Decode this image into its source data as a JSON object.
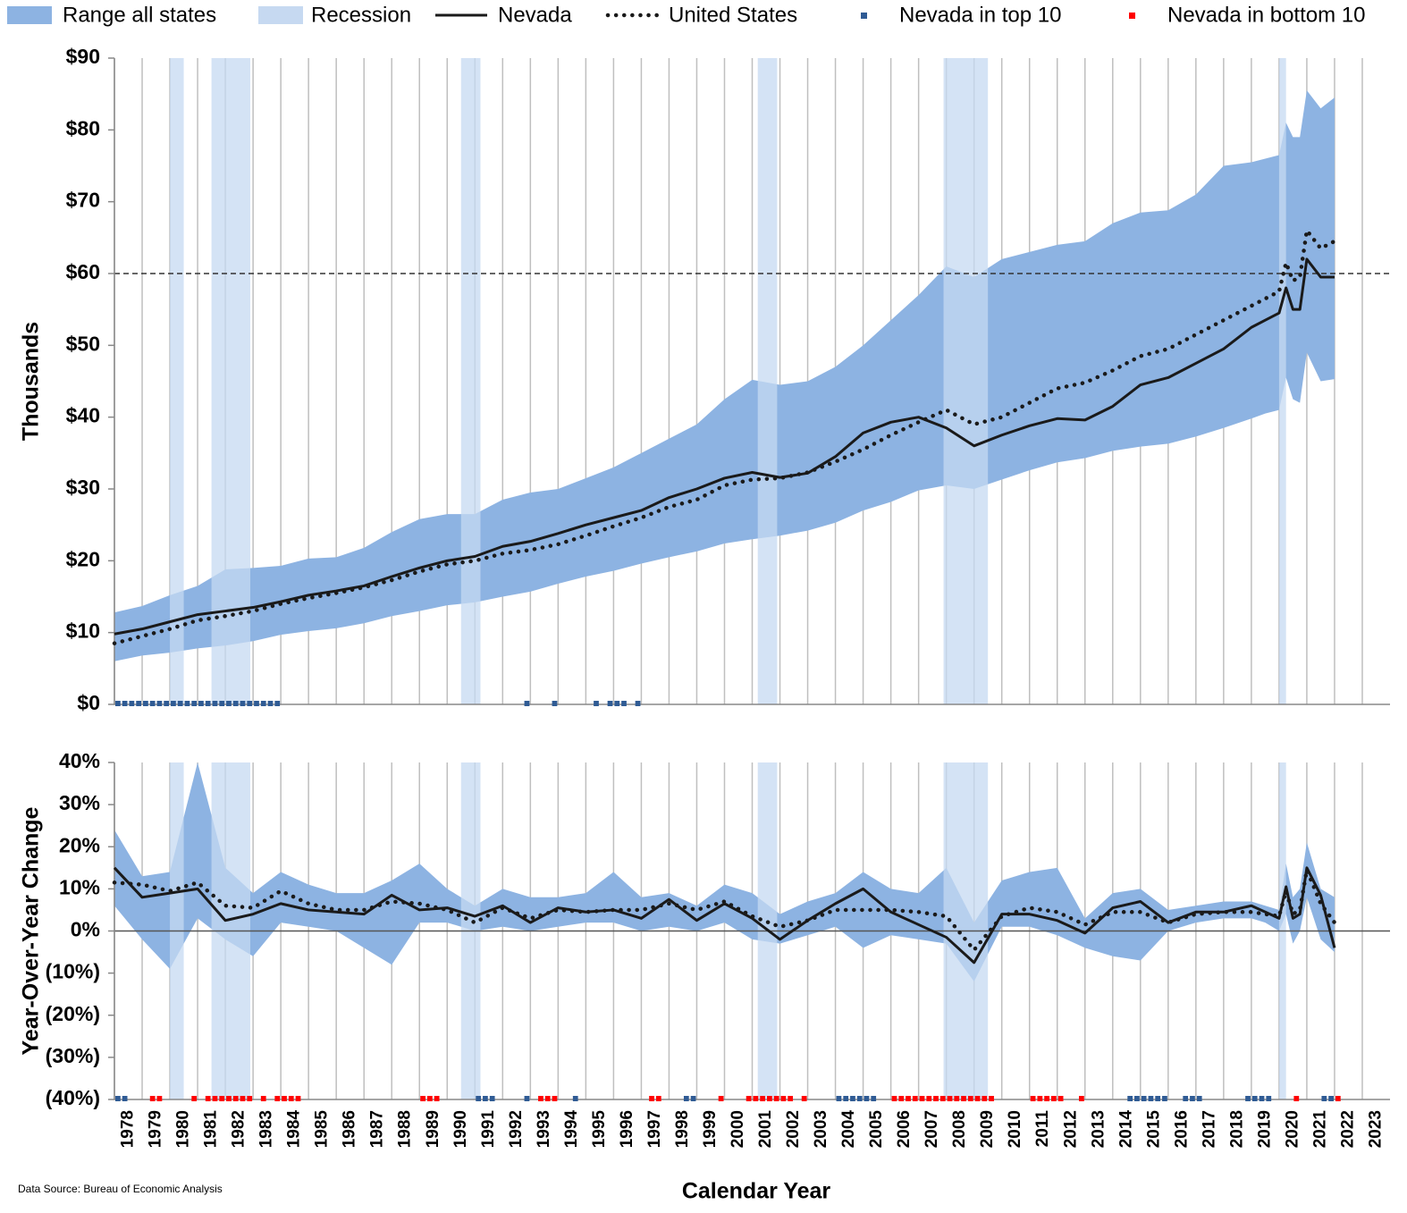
{
  "chart_data": [
    {
      "type": "line",
      "ylabel": "Thousands",
      "x": [
        1978,
        1979,
        1980,
        1981,
        1982,
        1983,
        1984,
        1985,
        1986,
        1987,
        1988,
        1989,
        1990,
        1991,
        1992,
        1993,
        1994,
        1995,
        1996,
        1997,
        1998,
        1999,
        2000,
        2001,
        2002,
        2003,
        2004,
        2005,
        2006,
        2007,
        2008,
        2009,
        2010,
        2011,
        2012,
        2013,
        2014,
        2015,
        2016,
        2017,
        2018,
        2019,
        2019.5,
        2020,
        2020.25,
        2020.5,
        2020.75,
        2021,
        2021.5,
        2022
      ],
      "xlim": [
        1978,
        2024
      ],
      "xticks": [
        1978,
        1979,
        1980,
        1981,
        1982,
        1983,
        1984,
        1985,
        1986,
        1987,
        1988,
        1989,
        1990,
        1991,
        1992,
        1993,
        1994,
        1995,
        1996,
        1997,
        1998,
        1999,
        2000,
        2001,
        2002,
        2003,
        2004,
        2005,
        2006,
        2007,
        2008,
        2009,
        2010,
        2011,
        2012,
        2013,
        2014,
        2015,
        2016,
        2017,
        2018,
        2019,
        2020,
        2021,
        2022,
        2023
      ],
      "show_xtick_labels": false,
      "ylim": [
        0,
        90
      ],
      "yticks": [
        {
          "value": 0,
          "label": "$0"
        },
        {
          "value": 10,
          "label": "$10"
        },
        {
          "value": 20,
          "label": "$20"
        },
        {
          "value": 30,
          "label": "$30"
        },
        {
          "value": 40,
          "label": "$40"
        },
        {
          "value": 50,
          "label": "$50"
        },
        {
          "value": 60,
          "label": "$60"
        },
        {
          "value": 70,
          "label": "$70"
        },
        {
          "value": 80,
          "label": "$80"
        },
        {
          "value": 90,
          "label": "$90"
        }
      ],
      "grid": true,
      "reference_line": {
        "value": 60,
        "style": "dashed"
      },
      "recession": {
        "name": "Recession",
        "color": "#c6d9f1",
        "periods": [
          [
            1980.0,
            1980.5
          ],
          [
            1981.5,
            1982.9
          ],
          [
            1990.5,
            1991.2
          ],
          [
            2001.2,
            2001.9
          ],
          [
            2007.9,
            2009.5
          ],
          [
            2020.0,
            2020.25
          ]
        ]
      },
      "range": {
        "name": "Range all states",
        "color": "#8db3e2",
        "low": [
          6,
          6.8,
          7.2,
          7.8,
          8.2,
          8.8,
          9.7,
          10.2,
          10.6,
          11.3,
          12.3,
          13.0,
          13.8,
          14.2,
          15.0,
          15.7,
          16.8,
          17.8,
          18.6,
          19.6,
          20.5,
          21.3,
          22.4,
          23.0,
          23.5,
          24.2,
          25.3,
          27.0,
          28.2,
          29.8,
          30.5,
          30.0,
          31.3,
          32.6,
          33.7,
          34.3,
          35.3,
          35.9,
          36.3,
          37.3,
          38.5,
          39.8,
          40.5,
          41,
          45.5,
          42.5,
          42,
          49,
          45,
          45.3
        ],
        "high": [
          12.8,
          13.7,
          15.2,
          16.5,
          18.8,
          19.0,
          19.3,
          20.3,
          20.5,
          21.8,
          24.0,
          25.8,
          26.5,
          26.5,
          28.5,
          29.5,
          30.0,
          31.5,
          33.0,
          35.0,
          37.0,
          39.0,
          42.5,
          45.2,
          44.5,
          45.0,
          47.0,
          50.0,
          53.5,
          57.0,
          61.0,
          59.5,
          62.0,
          63.0,
          64.0,
          64.5,
          67.0,
          68.5,
          68.8,
          71.0,
          75.0,
          75.5,
          76.0,
          76.5,
          81.0,
          79.0,
          79.0,
          85.5,
          83.0,
          84.5
        ]
      },
      "series": [
        {
          "name": "Nevada",
          "color": "#1a1a1a",
          "style": "solid",
          "values": [
            9.8,
            10.5,
            11.5,
            12.5,
            13.0,
            13.5,
            14.3,
            15.2,
            15.8,
            16.5,
            17.8,
            19.0,
            20.0,
            20.6,
            22.0,
            22.7,
            23.8,
            25.0,
            26.0,
            27.0,
            28.8,
            30.0,
            31.5,
            32.3,
            31.6,
            32.2,
            34.5,
            37.8,
            39.3,
            40.0,
            38.5,
            36.0,
            37.5,
            38.8,
            39.8,
            39.6,
            41.5,
            44.5,
            45.5,
            47.5,
            49.5,
            52.5,
            53.5,
            54.5,
            58.0,
            55.0,
            55.0,
            62.0,
            59.5,
            59.5
          ]
        },
        {
          "name": "United States",
          "color": "#1a1a1a",
          "style": "dotted",
          "values": [
            8.5,
            9.5,
            10.5,
            11.7,
            12.3,
            13.0,
            14.0,
            14.8,
            15.5,
            16.3,
            17.3,
            18.5,
            19.5,
            20.0,
            21.0,
            21.5,
            22.3,
            23.5,
            24.8,
            26.0,
            27.5,
            28.5,
            30.5,
            31.3,
            31.5,
            32.3,
            33.8,
            35.5,
            37.5,
            39.3,
            41.0,
            39.0,
            40.0,
            42.0,
            44.0,
            44.8,
            46.5,
            48.5,
            49.5,
            51.5,
            53.5,
            55.5,
            56.5,
            57.5,
            61.5,
            59.0,
            59.5,
            66.0,
            63.5,
            64.5
          ]
        }
      ],
      "markers": [
        {
          "name": "Nevada in top 10",
          "color": "#2f5b94",
          "x": [
            1978,
            1978.25,
            1978.5,
            1978.75,
            1979,
            1979.25,
            1979.5,
            1979.75,
            1980,
            1980.25,
            1980.5,
            1980.75,
            1981,
            1981.25,
            1981.5,
            1981.75,
            1982,
            1982.25,
            1982.5,
            1982.75,
            1983,
            1983.25,
            1983.5,
            1983.75,
            1992.75,
            1993.75,
            1995.25,
            1995.75,
            1996,
            1996.25,
            1996.75
          ]
        },
        {
          "name": "Nevada in bottom 10",
          "color": "#ff0000",
          "x": []
        }
      ]
    },
    {
      "type": "line",
      "ylabel": "Year-Over-Year Change",
      "xlabel": "Calendar Year",
      "note": "Data Source: Bureau of Economic Analysis",
      "x": [
        1978,
        1979,
        1980,
        1981,
        1982,
        1983,
        1984,
        1985,
        1986,
        1987,
        1988,
        1989,
        1990,
        1991,
        1992,
        1993,
        1994,
        1995,
        1996,
        1997,
        1998,
        1999,
        2000,
        2001,
        2002,
        2003,
        2004,
        2005,
        2006,
        2007,
        2008,
        2009,
        2010,
        2011,
        2012,
        2013,
        2014,
        2015,
        2016,
        2017,
        2018,
        2019,
        2019.5,
        2020,
        2020.25,
        2020.5,
        2020.75,
        2021,
        2021.5,
        2022
      ],
      "xlim": [
        1978,
        2024
      ],
      "xticks": [
        1978,
        1979,
        1980,
        1981,
        1982,
        1983,
        1984,
        1985,
        1986,
        1987,
        1988,
        1989,
        1990,
        1991,
        1992,
        1993,
        1994,
        1995,
        1996,
        1997,
        1998,
        1999,
        2000,
        2001,
        2002,
        2003,
        2004,
        2005,
        2006,
        2007,
        2008,
        2009,
        2010,
        2011,
        2012,
        2013,
        2014,
        2015,
        2016,
        2017,
        2018,
        2019,
        2020,
        2021,
        2022,
        2023
      ],
      "show_xtick_labels": true,
      "ylim": [
        -40,
        40
      ],
      "yticks": [
        {
          "value": -40,
          "label": "(40%)"
        },
        {
          "value": -30,
          "label": "(30%)"
        },
        {
          "value": -20,
          "label": "(20%)"
        },
        {
          "value": -10,
          "label": "(10%)"
        },
        {
          "value": 0,
          "label": "0%"
        },
        {
          "value": 10,
          "label": "10%"
        },
        {
          "value": 20,
          "label": "20%"
        },
        {
          "value": 30,
          "label": "30%"
        },
        {
          "value": 40,
          "label": "40%"
        }
      ],
      "grid": true,
      "reference_line": {
        "value": 0,
        "style": "solid"
      },
      "recession": {
        "color": "#c6d9f1",
        "periods": [
          [
            1980.0,
            1980.5
          ],
          [
            1981.5,
            1982.9
          ],
          [
            1990.5,
            1991.2
          ],
          [
            2001.2,
            2001.9
          ],
          [
            2007.9,
            2009.5
          ],
          [
            2020.0,
            2020.25
          ]
        ]
      },
      "range": {
        "color": "#8db3e2",
        "low": [
          6,
          -2,
          -9,
          3,
          -2,
          -6,
          2,
          1,
          0,
          -4,
          -8,
          2,
          2,
          0,
          1,
          0,
          1,
          2,
          2,
          0,
          1,
          0,
          2,
          -2,
          -3,
          -1,
          1,
          -4,
          -1,
          -2,
          -3,
          -12,
          1,
          1,
          -1,
          -4,
          -6,
          -7,
          0,
          2,
          3,
          3,
          2,
          0,
          4,
          -3,
          0,
          8,
          -2,
          -5
        ],
        "high": [
          24,
          13,
          14,
          40,
          15,
          9,
          14,
          11,
          9,
          9,
          12,
          16,
          10,
          6,
          10,
          8,
          8,
          9,
          14,
          8,
          9,
          6,
          11,
          9,
          4,
          7,
          9,
          14,
          10,
          9,
          15,
          2,
          12,
          14,
          15,
          3,
          9,
          10,
          5,
          6,
          7,
          7,
          6,
          5,
          16,
          8,
          10,
          21,
          10,
          8
        ]
      },
      "series": [
        {
          "color": "#1a1a1a",
          "style": "solid",
          "values": [
            15,
            8,
            9,
            10,
            2.5,
            4,
            6.5,
            5,
            4.5,
            4,
            8.5,
            5,
            5.5,
            3.5,
            6,
            2,
            5.5,
            4.5,
            5,
            3,
            7.5,
            2.5,
            6.5,
            3,
            -2,
            2.5,
            6.5,
            10,
            4.5,
            1.5,
            -1.5,
            -7.5,
            4,
            4,
            2.5,
            -0.5,
            5.5,
            7,
            2,
            4.5,
            4.5,
            6,
            4.5,
            3,
            10.5,
            3,
            4,
            15,
            8.5,
            -4
          ]
        },
        {
          "color": "#1a1a1a",
          "style": "dotted",
          "values": [
            11.5,
            11,
            9.5,
            11.5,
            6,
            5.5,
            9.5,
            6.5,
            5,
            5,
            7,
            6.5,
            5,
            2,
            5.5,
            3,
            5,
            4.5,
            5,
            5,
            6.5,
            5,
            7,
            3.5,
            1,
            2.5,
            5,
            5,
            5,
            4.5,
            3.5,
            -4.5,
            3.5,
            5.5,
            4.5,
            1.5,
            4.5,
            4.5,
            2,
            4,
            4.5,
            4.5,
            4,
            3.5,
            9.5,
            4,
            5,
            14.5,
            6.5,
            2
          ]
        }
      ],
      "markers": [
        {
          "color": "#2f5b94",
          "x": [
            1978,
            1978.25,
            1991,
            1991.25,
            1991.5,
            1992.75,
            1994.5,
            1998.5,
            1998.75,
            2004,
            2004.25,
            2004.5,
            2004.75,
            2005,
            2005.25,
            2014.5,
            2014.75,
            2015,
            2015.25,
            2015.5,
            2015.75,
            2016.5,
            2016.75,
            2017,
            2018.75,
            2019,
            2019.25,
            2019.5,
            2021.5,
            2021.75
          ]
        },
        {
          "color": "#ff0000",
          "x": [
            1979.25,
            1979.5,
            1980.75,
            1981.25,
            1981.5,
            1981.75,
            1982,
            1982.25,
            1982.5,
            1982.75,
            1983.25,
            1983.75,
            1984,
            1984.25,
            1984.5,
            1989,
            1989.25,
            1989.5,
            1993.25,
            1993.5,
            1993.75,
            1997.25,
            1997.5,
            1999.75,
            2000.75,
            2001,
            2001.25,
            2001.5,
            2001.75,
            2002,
            2002.25,
            2002.75,
            2006,
            2006.25,
            2006.5,
            2006.75,
            2007,
            2007.25,
            2007.5,
            2007.75,
            2008,
            2008.25,
            2008.5,
            2008.75,
            2009,
            2009.25,
            2009.5,
            2011,
            2011.25,
            2011.5,
            2011.75,
            2012,
            2012.75,
            2020.5,
            2022
          ]
        }
      ]
    }
  ]
}
